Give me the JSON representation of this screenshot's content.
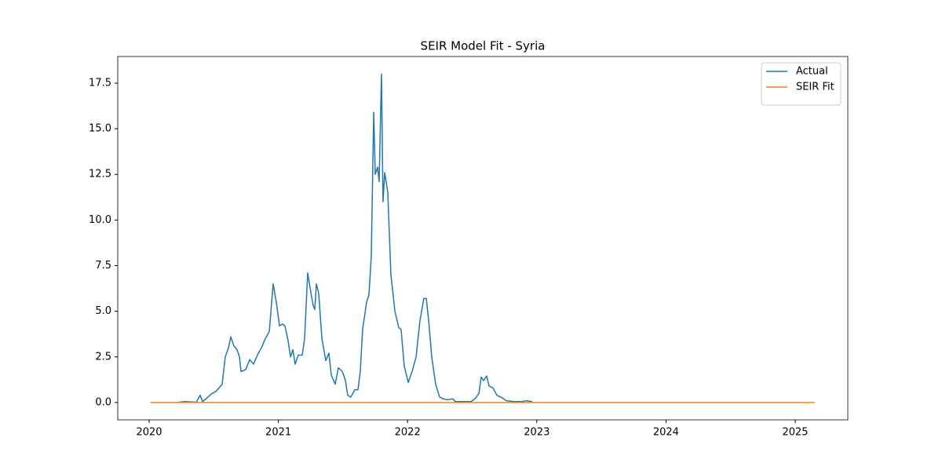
{
  "chart_data": {
    "type": "line",
    "title": "SEIR Model Fit - Syria",
    "xlim": [
      2019.757,
      2025.407
    ],
    "xticks": [
      2020,
      2021,
      2022,
      2023,
      2024,
      2025
    ],
    "ylim": [
      -0.95,
      18.96
    ],
    "yticks": [
      {
        "value": 0,
        "label": "0.0"
      },
      2.5,
      {
        "value": 5,
        "label": "5.0"
      },
      7.5,
      {
        "value": 10,
        "label": "10.0"
      },
      12.5,
      {
        "value": 15,
        "label": "15.0"
      },
      17.5
    ],
    "legend": "upper right",
    "series": [
      {
        "name": "Actual",
        "color": "#1f77b4",
        "x": [
          2020.213,
          2020.273,
          2020.365,
          2020.395,
          2020.413,
          2020.456,
          2020.486,
          2020.516,
          2020.565,
          2020.589,
          2020.614,
          2020.632,
          2020.656,
          2020.68,
          2020.699,
          2020.711,
          2020.747,
          2020.778,
          2020.808,
          2020.838,
          2020.869,
          2020.899,
          2020.93,
          2020.948,
          2020.96,
          2020.984,
          2021.009,
          2021.033,
          2021.051,
          2021.075,
          2021.094,
          2021.112,
          2021.13,
          2021.154,
          2021.185,
          2021.203,
          2021.227,
          2021.252,
          2021.27,
          2021.282,
          2021.294,
          2021.312,
          2021.337,
          2021.367,
          2021.391,
          2021.41,
          2021.44,
          2021.464,
          2021.495,
          2021.519,
          2021.537,
          2021.561,
          2021.592,
          2021.616,
          2021.634,
          2021.652,
          2021.683,
          2021.701,
          2021.719,
          2021.738,
          2021.75,
          2021.768,
          2021.78,
          2021.798,
          2021.81,
          2021.823,
          2021.847,
          2021.871,
          2021.902,
          2021.932,
          2021.95,
          2021.974,
          2022.005,
          2022.035,
          2022.066,
          2022.096,
          2022.126,
          2022.145,
          2022.163,
          2022.187,
          2022.217,
          2022.248,
          2022.278,
          2022.309,
          2022.351,
          2022.369,
          2022.43,
          2022.491,
          2022.521,
          2022.552,
          2022.57,
          2022.588,
          2022.612,
          2022.631,
          2022.661,
          2022.691,
          2022.734,
          2022.764,
          2022.825,
          2022.886,
          2022.916,
          2022.965
        ],
        "values": [
          0,
          0.05,
          0.02,
          0.4,
          0.05,
          0.3,
          0.5,
          0.6,
          1.0,
          2.5,
          3.0,
          3.6,
          3.1,
          2.9,
          2.5,
          1.7,
          1.8,
          2.35,
          2.1,
          2.6,
          3.0,
          3.5,
          3.9,
          5.5,
          6.5,
          5.5,
          4.2,
          4.3,
          4.2,
          3.4,
          2.5,
          2.9,
          2.1,
          2.6,
          2.6,
          3.5,
          7.1,
          6.0,
          5.3,
          5.1,
          6.5,
          6.0,
          3.5,
          2.3,
          2.7,
          1.5,
          1.0,
          1.9,
          1.7,
          1.2,
          0.4,
          0.3,
          0.7,
          0.7,
          1.7,
          4.0,
          5.5,
          5.9,
          8.0,
          15.9,
          12.5,
          12.9,
          12.1,
          18.0,
          11.0,
          12.6,
          11.5,
          7.0,
          5.0,
          4.1,
          4.0,
          2.0,
          1.1,
          1.7,
          2.5,
          4.5,
          5.7,
          5.7,
          4.5,
          2.5,
          1.0,
          0.3,
          0.2,
          0.15,
          0.2,
          0.05,
          0.05,
          0.05,
          0.2,
          0.5,
          1.4,
          1.2,
          1.45,
          0.9,
          0.8,
          0.4,
          0.25,
          0.1,
          0.05,
          0.05,
          0.1,
          0.05
        ]
      },
      {
        "name": "SEIR Fit",
        "color": "#ff7f0e",
        "x": [
          2020.01,
          2025.15
        ],
        "values": [
          0,
          0
        ]
      }
    ]
  }
}
